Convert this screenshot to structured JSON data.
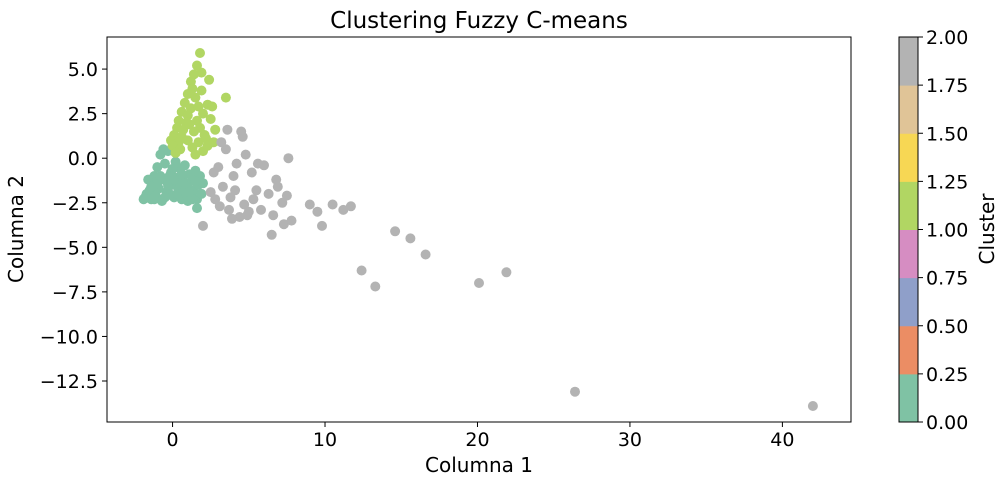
{
  "chart_data": {
    "type": "scatter",
    "title": "Clustering Fuzzy C-means",
    "xlabel": "Columna 1",
    "ylabel": "Columna 2",
    "xlim": [
      -4.3,
      44.5
    ],
    "ylim": [
      -14.8,
      6.8
    ],
    "xticks": [
      0,
      10,
      20,
      30,
      40
    ],
    "yticks": [
      5.0,
      2.5,
      0.0,
      -2.5,
      -5.0,
      -7.5,
      -10.0,
      -12.5
    ],
    "ytick_labels": [
      "5.0",
      "2.5",
      "0.0",
      "−2.5",
      "−5.0",
      "−7.5",
      "−10.0",
      "−12.5"
    ],
    "xtick_labels": [
      "0",
      "10",
      "20",
      "30",
      "40"
    ],
    "grid": false,
    "colorbar": {
      "label": "Cluster",
      "range": [
        0.0,
        2.0
      ],
      "ticks": [
        "0.00",
        "0.25",
        "0.50",
        "0.75",
        "1.00",
        "1.25",
        "1.50",
        "1.75",
        "2.00"
      ],
      "colors": [
        "#7fc2a4",
        "#eb8d64",
        "#8f9fc9",
        "#d68dc2",
        "#b1d663",
        "#f7d754",
        "#e0c497",
        "#b3b3b3"
      ]
    },
    "series": [
      {
        "cluster": 0,
        "color": "#7fc2a4",
        "points": [
          [
            -1.8,
            -2.2
          ],
          [
            -1.7,
            -2.0
          ],
          [
            -1.5,
            -1.8
          ],
          [
            -1.4,
            -2.3
          ],
          [
            -1.3,
            -1.5
          ],
          [
            -1.2,
            -1.0
          ],
          [
            -1.1,
            -2.1
          ],
          [
            -1.0,
            -0.5
          ],
          [
            -0.9,
            -1.7
          ],
          [
            -0.8,
            0.2
          ],
          [
            -0.7,
            -2.4
          ],
          [
            -0.6,
            -1.2
          ],
          [
            -0.5,
            -0.3
          ],
          [
            -0.4,
            -1.9
          ],
          [
            -0.3,
            0.4
          ],
          [
            -0.2,
            -2.0
          ],
          [
            -0.1,
            -0.8
          ],
          [
            0.0,
            -1.5
          ],
          [
            0.1,
            -2.2
          ],
          [
            0.2,
            -0.2
          ],
          [
            0.3,
            -1.1
          ],
          [
            0.4,
            -1.8
          ],
          [
            0.5,
            -0.6
          ],
          [
            0.6,
            -2.3
          ],
          [
            0.7,
            -1.3
          ],
          [
            0.8,
            -0.4
          ],
          [
            0.9,
            -2.0
          ],
          [
            1.0,
            -1.6
          ],
          [
            1.1,
            -0.9
          ],
          [
            1.2,
            -2.1
          ],
          [
            1.3,
            -1.2
          ],
          [
            1.4,
            -1.8
          ],
          [
            1.5,
            -0.7
          ],
          [
            1.6,
            -2.3
          ],
          [
            1.7,
            -1.5
          ],
          [
            1.8,
            -1.0
          ],
          [
            1.9,
            -2.0
          ],
          [
            2.0,
            -1.4
          ],
          [
            -1.6,
            -1.2
          ],
          [
            -1.0,
            -1.4
          ],
          [
            -0.5,
            -2.2
          ],
          [
            0.0,
            -0.6
          ],
          [
            0.5,
            -1.4
          ],
          [
            1.0,
            -2.4
          ],
          [
            -1.2,
            -2.3
          ],
          [
            -0.3,
            -1.5
          ],
          [
            0.3,
            -2.0
          ],
          [
            0.8,
            -1.8
          ],
          [
            1.3,
            -2.3
          ],
          [
            -0.8,
            -1.0
          ],
          [
            -1.4,
            -1.6
          ],
          [
            0.2,
            0.3
          ],
          [
            -0.6,
            0.5
          ],
          [
            1.5,
            -1.3
          ],
          [
            1.6,
            -2.8
          ],
          [
            -0.2,
            -1.0
          ],
          [
            0.6,
            -0.9
          ],
          [
            -1.9,
            -2.3
          ],
          [
            1.1,
            -1.9
          ],
          [
            0.1,
            -1.2
          ]
        ]
      },
      {
        "cluster": 1,
        "color": "#b1d663",
        "points": [
          [
            1.8,
            5.9
          ],
          [
            1.6,
            5.2
          ],
          [
            1.4,
            4.7
          ],
          [
            1.2,
            4.3
          ],
          [
            1.3,
            3.9
          ],
          [
            1.0,
            3.6
          ],
          [
            1.5,
            3.4
          ],
          [
            0.8,
            3.1
          ],
          [
            1.2,
            2.8
          ],
          [
            0.6,
            2.6
          ],
          [
            1.0,
            2.4
          ],
          [
            0.4,
            2.1
          ],
          [
            0.9,
            2.0
          ],
          [
            0.3,
            1.7
          ],
          [
            0.7,
            1.6
          ],
          [
            0.1,
            1.3
          ],
          [
            0.6,
            1.2
          ],
          [
            -0.1,
            1.0
          ],
          [
            0.4,
            0.9
          ],
          [
            0.0,
            0.7
          ],
          [
            1.6,
            2.1
          ],
          [
            1.8,
            1.7
          ],
          [
            2.0,
            2.5
          ],
          [
            2.3,
            3.0
          ],
          [
            2.1,
            1.3
          ],
          [
            2.5,
            2.2
          ],
          [
            1.7,
            0.9
          ],
          [
            2.4,
            4.4
          ],
          [
            3.5,
            3.4
          ],
          [
            2.6,
            2.9
          ],
          [
            2.2,
            1.1
          ],
          [
            1.4,
            1.5
          ],
          [
            1.9,
            3.8
          ],
          [
            1.1,
            1.9
          ],
          [
            0.5,
            0.5
          ],
          [
            1.3,
            0.6
          ],
          [
            2.0,
            0.4
          ],
          [
            1.5,
            0.2
          ],
          [
            2.8,
            1.6
          ],
          [
            1.7,
            2.9
          ],
          [
            1.0,
            1.0
          ],
          [
            0.2,
            0.3
          ],
          [
            2.3,
            0.7
          ],
          [
            2.7,
            0.9
          ],
          [
            1.9,
            4.8
          ]
        ]
      },
      {
        "cluster": 2,
        "color": "#b3b3b3",
        "points": [
          [
            3.0,
            -0.5
          ],
          [
            3.5,
            0.5
          ],
          [
            4.0,
            -1.0
          ],
          [
            4.5,
            1.5
          ],
          [
            4.8,
            0.2
          ],
          [
            5.2,
            -0.8
          ],
          [
            5.5,
            -1.8
          ],
          [
            6.0,
            -0.4
          ],
          [
            6.3,
            -2.0
          ],
          [
            6.8,
            -1.2
          ],
          [
            7.2,
            -2.5
          ],
          [
            7.6,
            0.0
          ],
          [
            7.5,
            -2.1
          ],
          [
            3.3,
            -1.6
          ],
          [
            3.8,
            -2.2
          ],
          [
            4.2,
            -0.3
          ],
          [
            4.7,
            -2.6
          ],
          [
            5.8,
            -2.9
          ],
          [
            6.6,
            -3.2
          ],
          [
            2.8,
            -2.3
          ],
          [
            3.1,
            -2.7
          ],
          [
            2.5,
            -1.9
          ],
          [
            4.4,
            -3.3
          ],
          [
            5.0,
            -3.0
          ],
          [
            3.9,
            -3.4
          ],
          [
            4.9,
            -3.2
          ],
          [
            6.5,
            -4.3
          ],
          [
            7.3,
            -3.7
          ],
          [
            2.0,
            -3.8
          ],
          [
            9.0,
            -2.6
          ],
          [
            9.5,
            -3.0
          ],
          [
            10.5,
            -2.6
          ],
          [
            11.2,
            -2.9
          ],
          [
            11.7,
            -2.7
          ],
          [
            9.8,
            -3.8
          ],
          [
            7.8,
            -3.5
          ],
          [
            14.6,
            -4.1
          ],
          [
            15.6,
            -4.5
          ],
          [
            16.6,
            -5.4
          ],
          [
            12.4,
            -6.3
          ],
          [
            13.3,
            -7.2
          ],
          [
            20.1,
            -7.0
          ],
          [
            21.9,
            -6.4
          ],
          [
            26.4,
            -13.1
          ],
          [
            42.0,
            -13.9
          ],
          [
            3.6,
            1.6
          ],
          [
            4.6,
            1.2
          ],
          [
            3.2,
            0.9
          ],
          [
            5.6,
            -0.3
          ],
          [
            6.9,
            -1.6
          ],
          [
            4.1,
            -1.8
          ],
          [
            5.3,
            -2.3
          ],
          [
            2.7,
            -0.8
          ],
          [
            3.7,
            -2.9
          ]
        ]
      }
    ]
  }
}
